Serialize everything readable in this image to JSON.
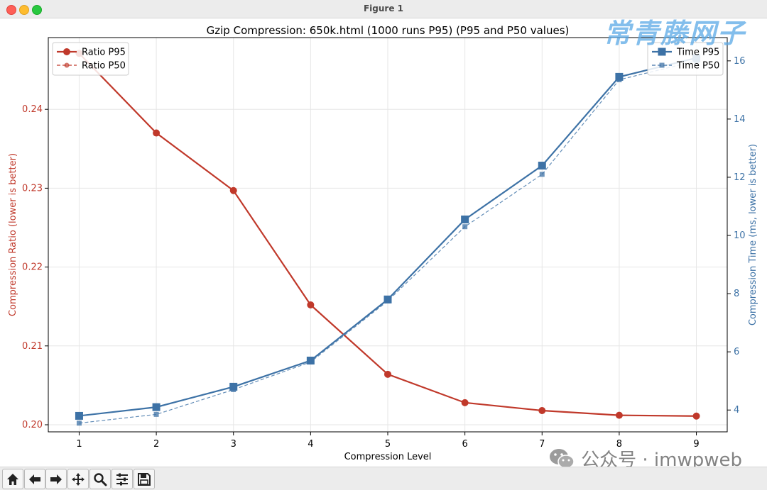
{
  "window": {
    "title": "Figure 1"
  },
  "watermark": {
    "top": "常青藤网子",
    "bottom": "公众号 · imwpweb"
  },
  "colors": {
    "ratio": "#c0392b",
    "time": "#3d72a6"
  },
  "toolbar": [
    "home-icon",
    "back-arrow-icon",
    "forward-arrow-icon",
    "pan-icon",
    "zoom-icon",
    "configure-subplots-icon",
    "save-icon"
  ],
  "chart_data": {
    "type": "line",
    "title": "Gzip Compression: 650k.html (1000 runs P95) (P95 and P50 values)",
    "xlabel": "Compression Level",
    "x": [
      1,
      2,
      3,
      4,
      5,
      6,
      7,
      8,
      9
    ],
    "xlim": [
      0.6,
      9.4
    ],
    "left_axis": {
      "label": "Compression Ratio (lower is better)",
      "ylim": [
        0.1991,
        0.2491
      ],
      "ticks": [
        0.2,
        0.21,
        0.22,
        0.23,
        0.24
      ],
      "tick_labels": [
        "0.20",
        "0.21",
        "0.22",
        "0.23",
        "0.24"
      ]
    },
    "right_axis": {
      "label": "Compression Time (ms, lower is better)",
      "ylim": [
        3.25,
        16.8
      ],
      "ticks": [
        4,
        6,
        8,
        10,
        12,
        14,
        16
      ],
      "tick_labels": [
        "4",
        "6",
        "8",
        "10",
        "12",
        "14",
        "16"
      ]
    },
    "series": [
      {
        "name": "Ratio P95",
        "axis": "left",
        "style": "solid",
        "marker": "circle",
        "values": [
          0.2471,
          0.237,
          0.2297,
          0.2152,
          0.2064,
          0.2028,
          0.2018,
          0.2012,
          0.2011
        ]
      },
      {
        "name": "Ratio P50",
        "axis": "left",
        "style": "dashed",
        "marker": "circle",
        "values": [
          0.2471,
          0.237,
          0.2297,
          0.2152,
          0.2064,
          0.2028,
          0.2018,
          0.2012,
          0.2011
        ]
      },
      {
        "name": "Time P95",
        "axis": "right",
        "style": "solid",
        "marker": "square",
        "values": [
          3.8,
          4.1,
          4.8,
          5.7,
          7.8,
          10.55,
          12.4,
          15.45,
          16.1
        ]
      },
      {
        "name": "Time P50",
        "axis": "right",
        "style": "dashed",
        "marker": "square",
        "values": [
          3.55,
          3.85,
          4.7,
          5.65,
          7.75,
          10.3,
          12.1,
          15.35,
          16.0
        ]
      }
    ],
    "legend_left": {
      "placement": "top-left",
      "entries": [
        "Ratio P95",
        "Ratio P50"
      ]
    },
    "legend_right": {
      "placement": "top-right",
      "entries": [
        "Time P95",
        "Time P50"
      ]
    },
    "grid": true
  }
}
